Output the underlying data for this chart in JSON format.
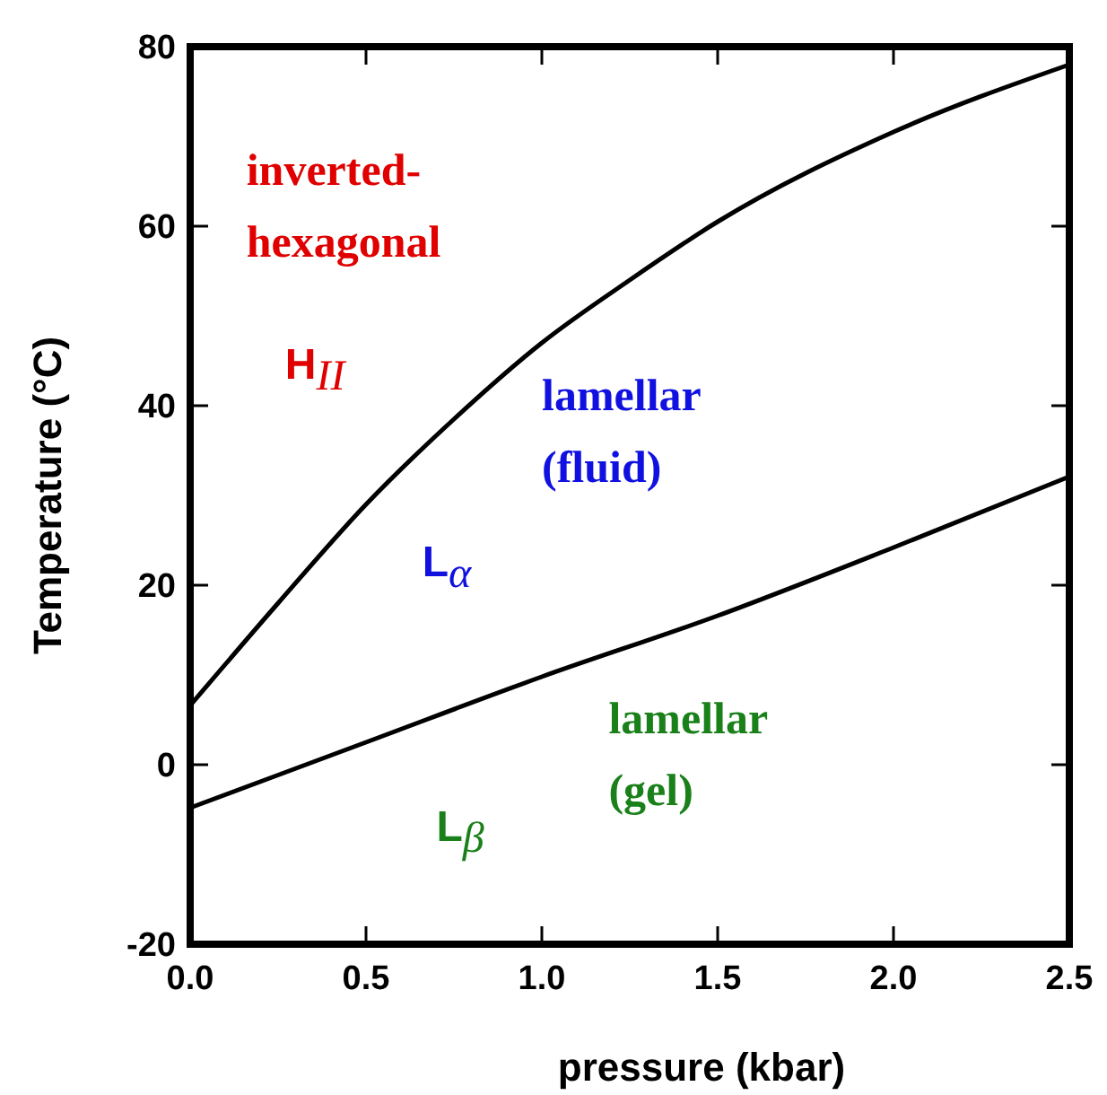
{
  "chart_data": {
    "type": "line",
    "xlabel": "pressure (kbar)",
    "ylabel": "Temperature (°C)",
    "xlim": [
      0,
      2.5
    ],
    "xticks": [
      {
        "value": 0,
        "label": "0.0"
      },
      0.5,
      {
        "value": 1,
        "label": "1.0"
      },
      1.5,
      {
        "value": 2,
        "label": "2.0"
      },
      2.5
    ],
    "ylim": [
      -20,
      80
    ],
    "yticks": [
      -20,
      0,
      20,
      40,
      60,
      80
    ],
    "grid": false,
    "series": [
      {
        "color": "#000000",
        "x": [
          0,
          0.25,
          0.5,
          0.75,
          1.0,
          1.25,
          1.5,
          2.0,
          2.5
        ],
        "values": [
          6.6,
          18,
          29,
          38.5,
          47,
          54,
          60.5,
          70.5,
          78
        ]
      },
      {
        "color": "#000000",
        "x": [
          0,
          0.5,
          1.0,
          1.5,
          2.0,
          2.5
        ],
        "values": [
          -4.8,
          2.5,
          9.8,
          16.6,
          24.2,
          32.1
        ]
      }
    ],
    "annotations": [
      "inverted-\nhexagonal",
      "H$_{II}$",
      "lamellar\n(fluid)",
      "L$_{α}$",
      "lamellar\n(gel)",
      "L$_{β}$"
    ]
  }
}
